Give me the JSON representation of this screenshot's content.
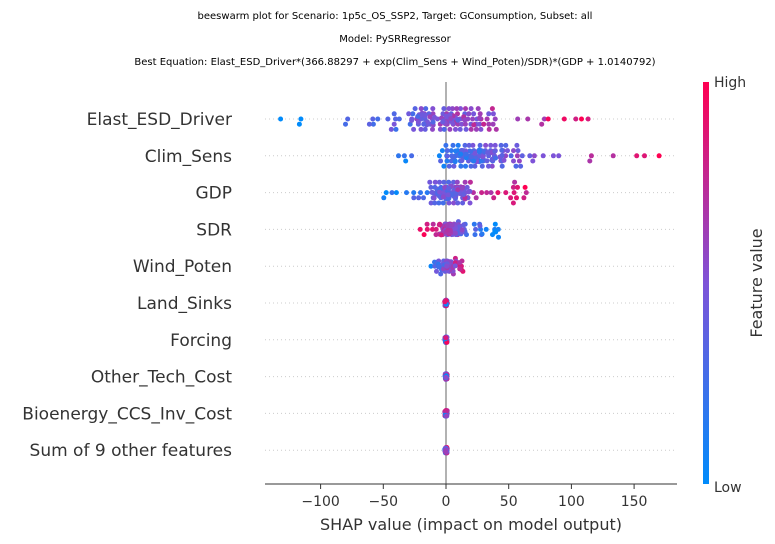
{
  "chart_data": {
    "type": "scatter",
    "subtype": "shap-beeswarm",
    "title_lines": [
      "beeswarm plot for Scenario: 1p5c_OS_SSP2, Target: GConsumption, Subset: all",
      "Model: PySRRegressor",
      "Best Equation: Elast_ESD_Driver*(366.88297 + exp(Clim_Sens + Wind_Poten)/SDR)*(GDP + 1.0140792)"
    ],
    "xlabel": "SHAP value (impact on model output)",
    "xlim": [
      -143,
      185
    ],
    "xticks": [
      -100,
      -50,
      0,
      50,
      100,
      150
    ],
    "xtick_labels": [
      "−100",
      "−50",
      "0",
      "50",
      "100",
      "150"
    ],
    "zero_line": 0,
    "colorbar": {
      "title": "Feature value",
      "high_label": "High",
      "low_label": "Low",
      "low_color": "#008bfb",
      "mid_color": "#7e53d8",
      "high_color": "#ff0052"
    },
    "features": [
      {
        "name": "Elast_ESD_Driver",
        "range": [
          -133,
          137
        ],
        "spread": 0.55,
        "trend": 1.0
      },
      {
        "name": "Clim_Sens",
        "range": [
          -42,
          170
        ],
        "spread": 0.55,
        "trend": 0.9
      },
      {
        "name": "GDP",
        "range": [
          -50,
          68
        ],
        "spread": 0.6,
        "trend": 0.9
      },
      {
        "name": "SDR",
        "range": [
          -22,
          42
        ],
        "spread": 0.5,
        "trend": -0.9
      },
      {
        "name": "Wind_Poten",
        "range": [
          -12,
          14
        ],
        "spread": 0.45,
        "trend": 0.6
      },
      {
        "name": "Land_Sinks",
        "range": [
          -1,
          1
        ],
        "spread": 0.25,
        "trend": 0.0
      },
      {
        "name": "Forcing",
        "range": [
          -1,
          1
        ],
        "spread": 0.25,
        "trend": 0.0
      },
      {
        "name": "Other_Tech_Cost",
        "range": [
          -1,
          1
        ],
        "spread": 0.25,
        "trend": 0.0
      },
      {
        "name": "Bioenergy_CCS_Inv_Cost",
        "range": [
          -1,
          1
        ],
        "spread": 0.25,
        "trend": 0.0
      },
      {
        "name": "Sum of 9 other features",
        "range": [
          -1,
          1
        ],
        "spread": 0.25,
        "trend": 0.0
      }
    ]
  }
}
